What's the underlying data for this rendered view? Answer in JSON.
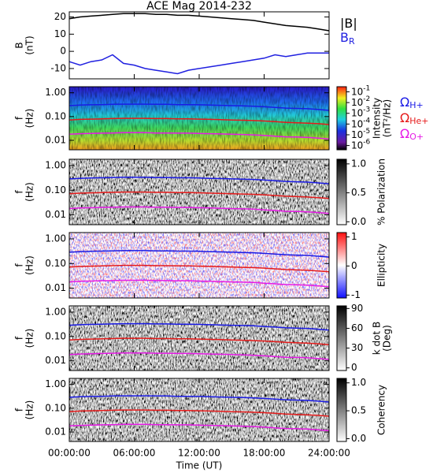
{
  "chart_data": [
    {
      "type": "line",
      "title": "ACE Mag 2014-232",
      "ylabel": [
        "B",
        "(nT)"
      ],
      "x": [
        0,
        1,
        2,
        3,
        4,
        5,
        6,
        7,
        8,
        9,
        10,
        11,
        12,
        13,
        14,
        15,
        16,
        17,
        18,
        19,
        20,
        21,
        22,
        23,
        24
      ],
      "ylim": [
        -16,
        23
      ],
      "yticks": [
        -10,
        0,
        10,
        20
      ],
      "series": [
        {
          "name": "|B|",
          "color": "#000000",
          "values": [
            19,
            20,
            20.5,
            21,
            21.5,
            22,
            22,
            22,
            21.5,
            21.5,
            21,
            21,
            20.5,
            20,
            19.5,
            19,
            18.5,
            18,
            17,
            16,
            15,
            14.5,
            14,
            13,
            12
          ]
        },
        {
          "name": "B",
          "sub": "R",
          "color": "#2020e0",
          "values": [
            -6,
            -8,
            -6,
            -5,
            -2,
            -7,
            -8,
            -10,
            -11,
            -12,
            -13,
            -11,
            -10,
            -9,
            -8,
            -7,
            -6,
            -5,
            -4,
            -2,
            -3,
            -2,
            -1,
            -1,
            -1
          ]
        }
      ]
    },
    {
      "type": "spectrogram",
      "style": "intensity",
      "ylabel": [
        "f",
        "(Hz)"
      ],
      "yscale": "log",
      "ylim": [
        0.004,
        1.8
      ],
      "yticks": [
        {
          "value": 1,
          "label": "1.00"
        },
        {
          "value": 0.1,
          "label": "0.10"
        },
        {
          "value": 0.01,
          "label": "0.01"
        }
      ],
      "colorbar": {
        "label": [
          "Intensity",
          "(nT²/Hz)"
        ],
        "scale": "log",
        "clim": [
          4e-07,
          0.3
        ],
        "ticks": [
          {
            "value": 0.1,
            "label": "10",
            "sup": "-1"
          },
          {
            "value": 0.01,
            "label": "10",
            "sup": "-2"
          },
          {
            "value": 0.001,
            "label": "10",
            "sup": "-3"
          },
          {
            "value": 0.0001,
            "label": "10",
            "sup": "-4"
          },
          {
            "value": 1e-05,
            "label": "10",
            "sup": "-5"
          },
          {
            "value": 1e-06,
            "label": "10",
            "sup": "-6"
          }
        ]
      },
      "series": [
        {
          "name": "Ω",
          "sub": "H+",
          "color": "#1a1ae6",
          "values": [
            0.289,
            0.304,
            0.312,
            0.319,
            0.327,
            0.334,
            0.334,
            0.334,
            0.327,
            0.327,
            0.319,
            0.319,
            0.312,
            0.304,
            0.296,
            0.289,
            0.281,
            0.274,
            0.258,
            0.243,
            0.228,
            0.22,
            0.213,
            0.198,
            0.182
          ]
        },
        {
          "name": "Ω",
          "sub": "He+",
          "color": "#e61a1a",
          "values": [
            0.072,
            0.076,
            0.078,
            0.08,
            0.082,
            0.084,
            0.084,
            0.084,
            0.082,
            0.082,
            0.08,
            0.08,
            0.078,
            0.076,
            0.074,
            0.072,
            0.07,
            0.068,
            0.065,
            0.061,
            0.057,
            0.055,
            0.053,
            0.05,
            0.046
          ]
        },
        {
          "name": "Ω",
          "sub": "O+",
          "color": "#e61ae6",
          "values": [
            0.018,
            0.019,
            0.0195,
            0.02,
            0.0204,
            0.021,
            0.021,
            0.021,
            0.0204,
            0.0204,
            0.02,
            0.02,
            0.0195,
            0.019,
            0.0185,
            0.018,
            0.0176,
            0.017,
            0.016,
            0.015,
            0.014,
            0.0138,
            0.0133,
            0.0124,
            0.0114
          ]
        }
      ]
    },
    {
      "type": "spectrogram",
      "style": "gray",
      "ylabel": [
        "f",
        "(Hz)"
      ],
      "yscale": "log",
      "ylim": [
        0.004,
        1.8
      ],
      "yticks": [
        {
          "value": 1,
          "label": "1.00"
        },
        {
          "value": 0.1,
          "label": "0.10"
        },
        {
          "value": 0.01,
          "label": "0.01"
        }
      ],
      "colorbar": {
        "label": [
          "% Polarization"
        ],
        "scale": "linear",
        "clim": [
          -0.05,
          1.08
        ],
        "ticks": [
          {
            "value": 1,
            "label": "1.0"
          },
          0.5,
          {
            "value": 0,
            "label": "0.0"
          }
        ]
      }
    },
    {
      "type": "spectrogram",
      "style": "ellipticity",
      "ylabel": [
        "f",
        "(Hz)"
      ],
      "yscale": "log",
      "ylim": [
        0.004,
        1.8
      ],
      "yticks": [
        {
          "value": 1,
          "label": "1.00"
        },
        {
          "value": 0.1,
          "label": "0.10"
        },
        {
          "value": 0.01,
          "label": "0.01"
        }
      ],
      "colorbar": {
        "label": [
          "Ellipticity"
        ],
        "scale": "linear",
        "clim": [
          -1.1,
          1.15
        ],
        "ticks": [
          1,
          0,
          -1
        ]
      }
    },
    {
      "type": "spectrogram",
      "style": "gray",
      "ylabel": [
        "f",
        "(Hz)"
      ],
      "yscale": "log",
      "ylim": [
        0.004,
        1.8
      ],
      "yticks": [
        {
          "value": 1,
          "label": "1.00"
        },
        {
          "value": 0.1,
          "label": "0.10"
        },
        {
          "value": 0.01,
          "label": "0.01"
        }
      ],
      "colorbar": {
        "label": [
          "k dot B",
          "(Deg)"
        ],
        "scale": "linear",
        "clim": [
          -4,
          94
        ],
        "ticks": [
          90,
          60,
          30,
          0
        ]
      }
    },
    {
      "type": "spectrogram",
      "style": "gray",
      "ylabel": [
        "f",
        "(Hz)"
      ],
      "yscale": "log",
      "ylim": [
        0.004,
        1.8
      ],
      "yticks": [
        {
          "value": 1,
          "label": "1.00"
        },
        {
          "value": 0.1,
          "label": "0.10"
        },
        {
          "value": 0.01,
          "label": "0.01"
        }
      ],
      "colorbar": {
        "label": [
          "Coherency"
        ],
        "scale": "linear",
        "clim": [
          -0.05,
          1.08
        ],
        "ticks": [
          {
            "value": 1,
            "label": "1.0"
          },
          0.5,
          {
            "value": 0,
            "label": "0.0"
          }
        ]
      },
      "xlabel": "Time (UT)",
      "xlim": [
        0,
        24
      ],
      "xticks": [
        {
          "value": 0,
          "label": "00:00:00"
        },
        {
          "value": 6,
          "label": "06:00:00"
        },
        {
          "value": 12,
          "label": "12:00:00"
        },
        {
          "value": 18,
          "label": "18:00:00"
        },
        {
          "value": 24,
          "label": "24:00:00"
        }
      ]
    }
  ]
}
